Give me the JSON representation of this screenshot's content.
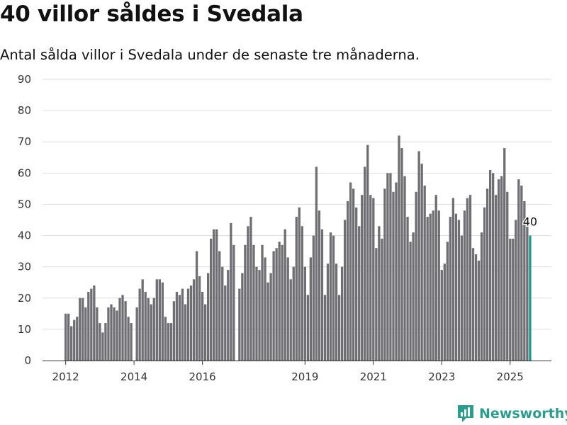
{
  "title": "40 villor såldes i Svedala",
  "subtitle": "Antal sålda villor i Svedala under de senaste tre månaderna.",
  "brand": {
    "name": "Newsworthy",
    "color": "#2a9d8f"
  },
  "colors": {
    "bar": "#6e6e73",
    "highlight": "#1a9a8c",
    "grid": "#dddddd",
    "axis": "#333333"
  },
  "chart_data": {
    "type": "bar",
    "title": "40 villor såldes i Svedala",
    "xlabel": "",
    "ylabel": "",
    "ylim": [
      0,
      90
    ],
    "yticks": [
      0,
      10,
      20,
      30,
      40,
      50,
      60,
      70,
      80,
      90
    ],
    "xticks": [
      {
        "label": "2012",
        "date": "2012-01"
      },
      {
        "label": "2014",
        "date": "2014-01"
      },
      {
        "label": "2016",
        "date": "2016-01"
      },
      {
        "label": "2019",
        "date": "2019-01"
      },
      {
        "label": "2021",
        "date": "2021-01"
      },
      {
        "label": "2023",
        "date": "2023-01"
      },
      {
        "label": "2025",
        "date": "2025-01"
      }
    ],
    "grid": true,
    "series": [
      {
        "start": "2012-01",
        "values": [
          15,
          15,
          11,
          13,
          14,
          20,
          20,
          17,
          22,
          23,
          24,
          17,
          12,
          9,
          12,
          17,
          18,
          17,
          16,
          20,
          21,
          19,
          14,
          12,
          0,
          17,
          23,
          26,
          22,
          20,
          18,
          20,
          26,
          26,
          25,
          14,
          12,
          12,
          19,
          22,
          21,
          23,
          18,
          23,
          24,
          26,
          35,
          27,
          22,
          18,
          28,
          39,
          42,
          42,
          35,
          30,
          24,
          29,
          44,
          37,
          0,
          23,
          28,
          37,
          43,
          46,
          37,
          30,
          29,
          37,
          33,
          25,
          28,
          35,
          36,
          38,
          37,
          42,
          33,
          26,
          30,
          46,
          49,
          43,
          30,
          21,
          33,
          40,
          62,
          48,
          42,
          21,
          31,
          41,
          40,
          31,
          21,
          30,
          45,
          51,
          57,
          55,
          49,
          43,
          53,
          62,
          69,
          53,
          52,
          36,
          43,
          39,
          55,
          60,
          60,
          54,
          57,
          72,
          68,
          59,
          46,
          38,
          41,
          54,
          67,
          63,
          56,
          46,
          47,
          48,
          53,
          48,
          29,
          31,
          38,
          46,
          52,
          47,
          45,
          40,
          48,
          52,
          53,
          36,
          34,
          32,
          41,
          49,
          55,
          61,
          60,
          53,
          58,
          59,
          68,
          54,
          39,
          39,
          45,
          58,
          56,
          51,
          43,
          40
        ],
        "highlight_last": true
      }
    ],
    "annotations": [
      {
        "text": "40",
        "date": "2025-08",
        "value": 40
      }
    ]
  }
}
